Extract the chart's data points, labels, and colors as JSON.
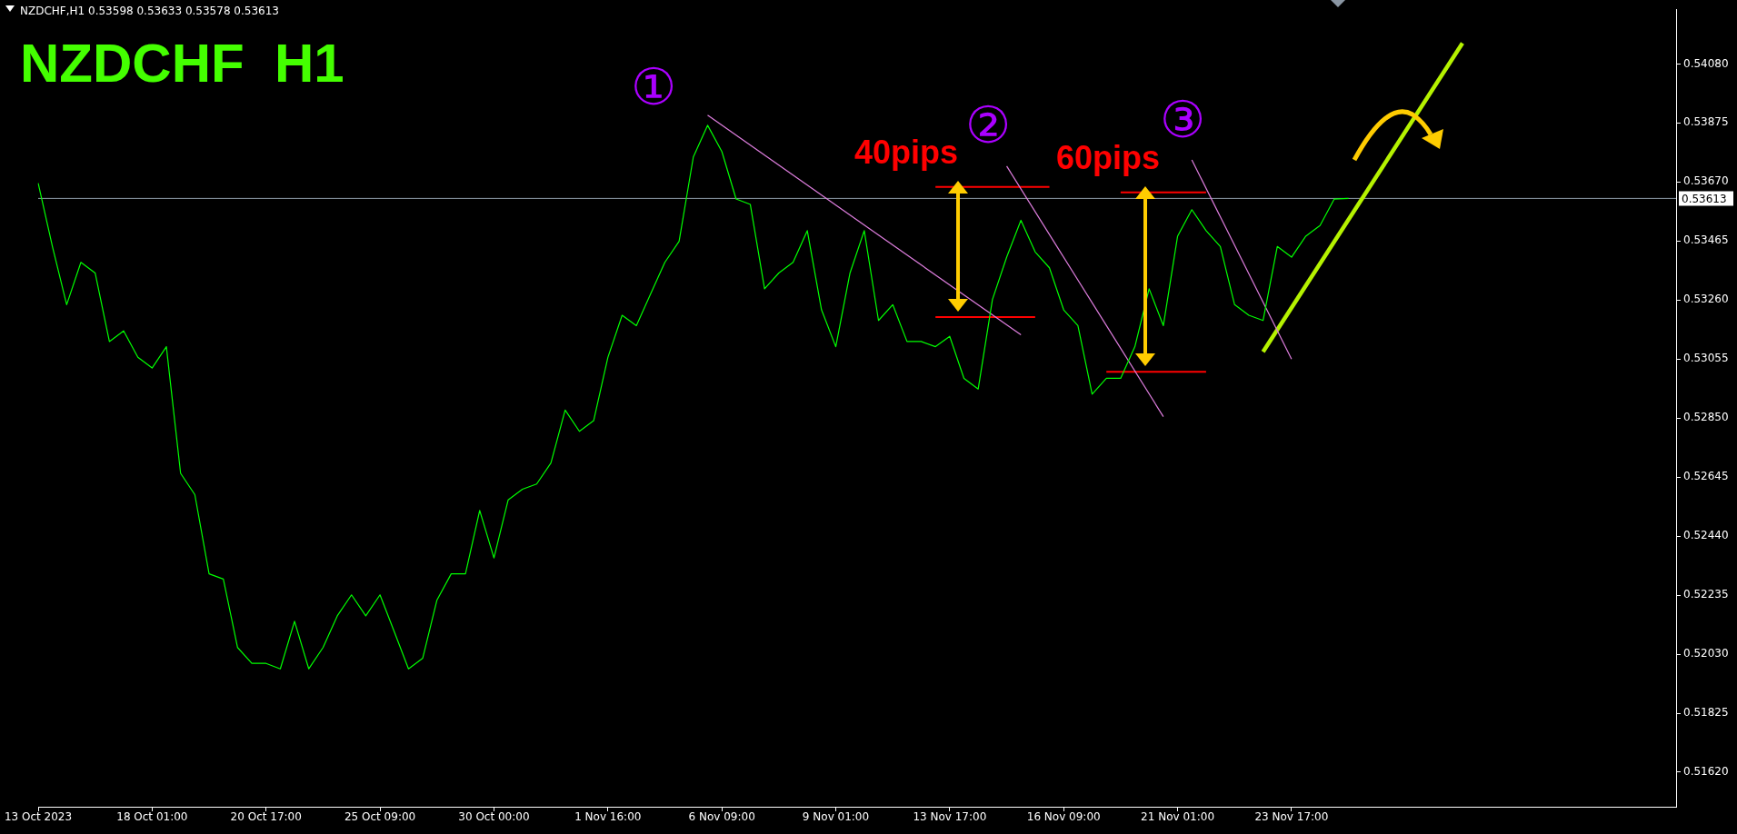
{
  "chart_data": {
    "type": "line",
    "title": "NZDCHF  H1",
    "subtitle": "NZDCHF,H1  0.53598 0.53633 0.53578 0.53613",
    "categories": [
      "13 Oct 2023",
      null,
      null,
      null,
      null,
      null,
      null,
      null,
      "18 Oct 01:00",
      null,
      null,
      null,
      null,
      null,
      null,
      null,
      "20 Oct 17:00",
      null,
      null,
      null,
      null,
      null,
      null,
      null,
      "25 Oct 09:00",
      null,
      null,
      null,
      null,
      null,
      null,
      null,
      "30 Oct 00:00",
      null,
      null,
      null,
      null,
      null,
      null,
      null,
      "1 Nov 16:00",
      null,
      null,
      null,
      null,
      null,
      null,
      null,
      "6 Nov 09:00",
      null,
      null,
      null,
      null,
      null,
      null,
      null,
      "9 Nov 01:00",
      null,
      null,
      null,
      null,
      null,
      null,
      null,
      "13 Nov 17:00",
      null,
      null,
      null,
      null,
      null,
      null,
      null,
      "16 Nov 09:00",
      null,
      null,
      null,
      null,
      null,
      null,
      null,
      "21 Nov 01:00",
      null,
      null,
      null,
      null,
      null,
      null,
      null,
      "23 Nov 17:00",
      null,
      null,
      null,
      null,
      null,
      null,
      null,
      null,
      null,
      null,
      null,
      null,
      null,
      null,
      null,
      null,
      null,
      null,
      null,
      null,
      null,
      null,
      null,
      null,
      null,
      null,
      null
    ],
    "series": [
      {
        "type": "line",
        "color": "#00ff00",
        "values": [
          0.53666,
          0.53446,
          0.53244,
          0.53391,
          0.53354,
          0.53116,
          0.53153,
          0.53061,
          0.53024,
          0.53098,
          0.52658,
          0.52584,
          0.52309,
          0.52291,
          0.52053,
          0.51998,
          0.51998,
          0.51979,
          0.52144,
          0.51979,
          0.52053,
          0.52163,
          0.52236,
          0.52163,
          0.52236,
          0.52108,
          0.51979,
          0.52016,
          0.52218,
          0.52309,
          0.52309,
          0.52529,
          0.52364,
          0.52566,
          0.52603,
          0.52621,
          0.52694,
          0.52878,
          0.52804,
          0.52841,
          0.53061,
          0.53207,
          0.53171,
          0.53281,
          0.53391,
          0.53464,
          0.53757,
          0.53867,
          0.53776,
          0.53611,
          0.53592,
          0.53299,
          0.53354,
          0.53391,
          0.53501,
          0.53226,
          0.53098,
          0.53354,
          0.53501,
          0.53189,
          0.53244,
          0.53116,
          0.53116,
          0.53098,
          0.53134,
          0.52988,
          0.52951,
          0.53262,
          0.53409,
          0.53537,
          0.53427,
          0.53372,
          0.53226,
          0.53171,
          0.52933,
          0.52988,
          0.52988,
          0.53098,
          0.53299,
          0.53171,
          0.53482,
          0.53574,
          0.53501,
          0.53446,
          0.53244,
          0.53207,
          0.53189,
          0.53446,
          0.53409,
          0.53482,
          0.53519,
          0.53611,
          0.53613,
          null,
          null,
          null,
          null,
          null,
          null,
          null,
          null,
          null,
          null,
          null,
          null,
          null,
          null,
          null,
          null,
          null,
          null,
          null,
          null,
          null,
          null,
          null
        ]
      },
      {
        "type": "line",
        "color": "#e07fe0",
        "values": [
          null,
          null,
          null,
          null,
          null,
          null,
          null,
          null,
          null,
          null,
          null,
          null,
          null,
          null,
          null,
          null,
          null,
          null,
          null,
          null,
          null,
          null,
          null,
          null,
          null,
          null,
          null,
          null,
          null,
          null,
          null,
          null,
          null,
          null,
          null,
          null,
          null,
          null,
          null,
          null,
          null,
          null,
          null,
          null,
          null,
          null,
          null,
          0.53902,
          null,
          null,
          null,
          null,
          null,
          null,
          null,
          null,
          null,
          null,
          null,
          null,
          null,
          null,
          null,
          null,
          null,
          null,
          null,
          null,
          null,
          0.53139,
          null,
          null,
          null,
          null,
          null,
          null,
          null,
          null,
          null,
          null,
          null,
          null,
          null,
          null,
          null,
          null,
          null,
          null,
          null,
          null,
          null,
          null,
          null,
          null,
          null,
          null,
          null,
          null,
          null,
          null,
          null,
          null,
          null,
          null,
          null,
          null,
          null,
          null,
          null,
          null,
          null,
          null,
          null,
          null,
          null,
          null
        ]
      },
      {
        "type": "line",
        "color": "#e07fe0",
        "values": [
          null,
          null,
          null,
          null,
          null,
          null,
          null,
          null,
          null,
          null,
          null,
          null,
          null,
          null,
          null,
          null,
          null,
          null,
          null,
          null,
          null,
          null,
          null,
          null,
          null,
          null,
          null,
          null,
          null,
          null,
          null,
          null,
          null,
          null,
          null,
          null,
          null,
          null,
          null,
          null,
          null,
          null,
          null,
          null,
          null,
          null,
          null,
          null,
          null,
          null,
          null,
          null,
          null,
          null,
          null,
          null,
          null,
          null,
          null,
          null,
          null,
          null,
          null,
          null,
          null,
          null,
          null,
          null,
          0.53725,
          null,
          null,
          null,
          null,
          null,
          null,
          null,
          null,
          null,
          null,
          0.52855,
          null,
          null,
          null,
          null,
          null,
          null,
          null,
          null,
          null,
          null,
          null,
          null,
          null,
          null,
          null,
          null,
          null,
          null,
          null,
          null,
          null,
          null,
          null,
          null,
          null,
          null,
          null,
          null,
          null,
          null,
          null,
          null,
          null,
          null,
          null,
          null
        ]
      },
      {
        "type": "line",
        "color": "#e07fe0",
        "values": [
          null,
          null,
          null,
          null,
          null,
          null,
          null,
          null,
          null,
          null,
          null,
          null,
          null,
          null,
          null,
          null,
          null,
          null,
          null,
          null,
          null,
          null,
          null,
          null,
          null,
          null,
          null,
          null,
          null,
          null,
          null,
          null,
          null,
          null,
          null,
          null,
          null,
          null,
          null,
          null,
          null,
          null,
          null,
          null,
          null,
          null,
          null,
          null,
          null,
          null,
          null,
          null,
          null,
          null,
          null,
          null,
          null,
          null,
          null,
          null,
          null,
          null,
          null,
          null,
          null,
          null,
          null,
          null,
          null,
          null,
          null,
          null,
          null,
          null,
          null,
          null,
          null,
          null,
          null,
          null,
          null,
          0.53747,
          null,
          null,
          null,
          null,
          null,
          null,
          0.53055,
          null,
          null,
          null,
          null,
          null,
          null,
          null,
          null,
          null,
          null,
          null,
          null,
          null,
          null,
          null,
          null,
          null,
          null,
          null,
          null,
          null,
          null,
          null,
          null,
          null,
          null,
          null
        ]
      },
      {
        "type": "line",
        "color": "#b5f200",
        "values": [
          null,
          null,
          null,
          null,
          null,
          null,
          null,
          null,
          null,
          null,
          null,
          null,
          null,
          null,
          null,
          null,
          null,
          null,
          null,
          null,
          null,
          null,
          null,
          null,
          null,
          null,
          null,
          null,
          null,
          null,
          null,
          null,
          null,
          null,
          null,
          null,
          null,
          null,
          null,
          null,
          null,
          null,
          null,
          null,
          null,
          null,
          null,
          null,
          null,
          null,
          null,
          null,
          null,
          null,
          null,
          null,
          null,
          null,
          null,
          null,
          null,
          null,
          null,
          null,
          null,
          null,
          null,
          null,
          null,
          null,
          null,
          null,
          null,
          null,
          null,
          null,
          null,
          null,
          null,
          null,
          null,
          null,
          null,
          null,
          null,
          null,
          0.5308,
          null,
          null,
          null,
          null,
          null,
          null,
          null,
          null,
          null,
          null,
          null,
          null,
          null,
          0.54152,
          null,
          null,
          null,
          null,
          null,
          null,
          null,
          null,
          null,
          null,
          null,
          null,
          null,
          null,
          null
        ]
      },
      {
        "type": "line",
        "color": "#ff0000",
        "values": [
          null,
          null,
          null,
          null,
          null,
          null,
          null,
          null,
          null,
          null,
          null,
          null,
          null,
          null,
          null,
          null,
          null,
          null,
          null,
          null,
          null,
          null,
          null,
          null,
          null,
          null,
          null,
          null,
          null,
          null,
          null,
          null,
          null,
          null,
          null,
          null,
          null,
          null,
          null,
          null,
          null,
          null,
          null,
          null,
          null,
          null,
          null,
          null,
          null,
          null,
          null,
          null,
          null,
          null,
          null,
          null,
          null,
          null,
          null,
          null,
          null,
          null,
          null,
          0.53653,
          null,
          null,
          null,
          null,
          null,
          null,
          null,
          0.53653,
          null,
          null,
          null,
          null,
          null,
          null,
          null,
          null,
          null,
          null,
          null,
          null,
          null,
          null,
          null,
          null,
          null,
          null,
          null,
          null,
          null,
          null,
          null,
          null,
          null,
          null,
          null,
          null,
          null,
          null,
          null,
          null,
          null,
          null,
          null,
          null,
          null,
          null,
          null,
          null,
          null,
          null,
          null,
          null
        ]
      },
      {
        "type": "line",
        "color": "#ff0000",
        "values": [
          null,
          null,
          null,
          null,
          null,
          null,
          null,
          null,
          null,
          null,
          null,
          null,
          null,
          null,
          null,
          null,
          null,
          null,
          null,
          null,
          null,
          null,
          null,
          null,
          null,
          null,
          null,
          null,
          null,
          null,
          null,
          null,
          null,
          null,
          null,
          null,
          null,
          null,
          null,
          null,
          null,
          null,
          null,
          null,
          null,
          null,
          null,
          null,
          null,
          null,
          null,
          null,
          null,
          null,
          null,
          null,
          null,
          null,
          null,
          null,
          null,
          null,
          null,
          0.53201,
          null,
          null,
          null,
          null,
          null,
          null,
          0.53201,
          null,
          null,
          null,
          null,
          null,
          null,
          null,
          null,
          null,
          null,
          null,
          null,
          null,
          null,
          null,
          null,
          null,
          null,
          null,
          null,
          null,
          null,
          null,
          null,
          null,
          null,
          null,
          null,
          null,
          null,
          null,
          null,
          null,
          null,
          null,
          null,
          null,
          null,
          null,
          null,
          null,
          null,
          null,
          null,
          null
        ]
      },
      {
        "type": "line",
        "color": "#ff0000",
        "values": [
          null,
          null,
          null,
          null,
          null,
          null,
          null,
          null,
          null,
          null,
          null,
          null,
          null,
          null,
          null,
          null,
          null,
          null,
          null,
          null,
          null,
          null,
          null,
          null,
          null,
          null,
          null,
          null,
          null,
          null,
          null,
          null,
          null,
          null,
          null,
          null,
          null,
          null,
          null,
          null,
          null,
          null,
          null,
          null,
          null,
          null,
          null,
          null,
          null,
          null,
          null,
          null,
          null,
          null,
          null,
          null,
          null,
          null,
          null,
          null,
          null,
          null,
          null,
          null,
          null,
          null,
          null,
          null,
          null,
          null,
          null,
          null,
          null,
          null,
          null,
          null,
          0.53634,
          null,
          null,
          null,
          null,
          null,
          0.53634,
          null,
          null,
          null,
          null,
          null,
          null,
          null,
          null,
          null,
          null,
          null,
          null,
          null,
          null,
          null,
          null,
          null,
          null,
          null,
          null,
          null,
          null,
          null,
          null,
          null,
          null,
          null,
          null,
          null,
          null,
          null,
          null,
          null
        ]
      },
      {
        "type": "line",
        "color": "#ff0000",
        "values": [
          null,
          null,
          null,
          null,
          null,
          null,
          null,
          null,
          null,
          null,
          null,
          null,
          null,
          null,
          null,
          null,
          null,
          null,
          null,
          null,
          null,
          null,
          null,
          null,
          null,
          null,
          null,
          null,
          null,
          null,
          null,
          null,
          null,
          null,
          null,
          null,
          null,
          null,
          null,
          null,
          null,
          null,
          null,
          null,
          null,
          null,
          null,
          null,
          null,
          null,
          null,
          null,
          null,
          null,
          null,
          null,
          null,
          null,
          null,
          null,
          null,
          null,
          null,
          null,
          null,
          null,
          null,
          null,
          null,
          null,
          null,
          null,
          null,
          null,
          null,
          0.53011,
          null,
          null,
          null,
          null,
          null,
          null,
          0.53011,
          null,
          null,
          null,
          null,
          null,
          null,
          null,
          null,
          null,
          null,
          null,
          null,
          null,
          null,
          null,
          null,
          null,
          null,
          null,
          null,
          null,
          null,
          null,
          null,
          null,
          null,
          null,
          null,
          null,
          null,
          null,
          null,
          null
        ]
      }
    ],
    "ylim": [
      0.515,
      0.5427
    ],
    "yticks": [
      {
        "value": 0.5162,
        "label": "0.51620"
      },
      0.51825,
      {
        "value": 0.5203,
        "label": "0.52030"
      },
      0.52235,
      {
        "value": 0.5244,
        "label": "0.52440"
      },
      0.52645,
      {
        "value": 0.5285,
        "label": "0.52850"
      },
      0.53055,
      {
        "value": 0.5326,
        "label": "0.53260"
      },
      0.53465,
      {
        "value": 0.5367,
        "label": "0.53670"
      },
      0.53875,
      {
        "value": 0.5408,
        "label": "0.54080"
      }
    ],
    "ref_lines": [
      {
        "axis": "y",
        "value": 0.53613,
        "label": "0.53613",
        "color": "#8c9aa6"
      }
    ],
    "annotations": [
      "①",
      "②",
      "③",
      "40pips",
      "60pips"
    ],
    "grid": false,
    "legend": false
  }
}
